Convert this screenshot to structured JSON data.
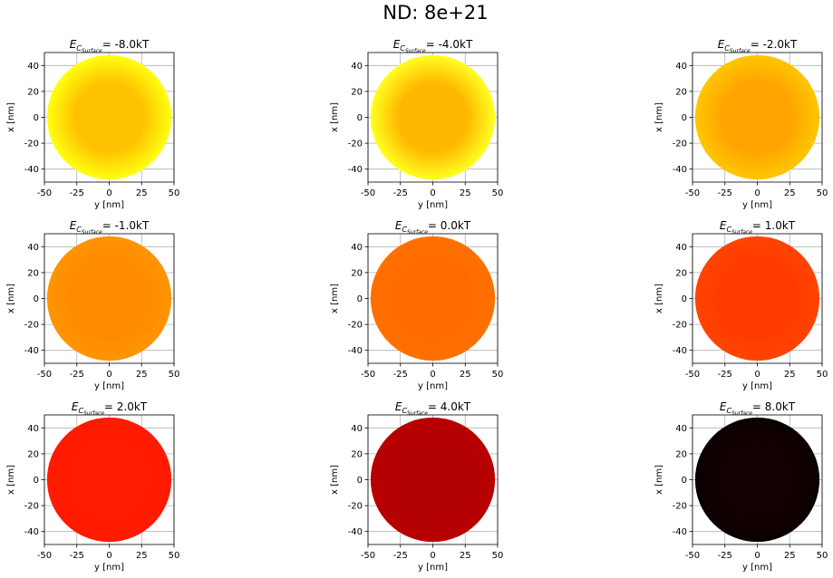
{
  "figure": {
    "suptitle": "ND: 8e+21"
  },
  "chart_data": [
    {
      "type": "heatmap",
      "title_prefix": "E",
      "title_sub": "C",
      "title_subsub": "Surface",
      "title_value": "= -8.0kT",
      "center_color": "#ffc200",
      "edge_color": "#ffff10",
      "xlabel": "y [nm]",
      "ylabel": "x [nm]",
      "xlim": [
        -50,
        50
      ],
      "ylim": [
        -50,
        50
      ],
      "xticks": [
        "-50",
        "-25",
        "0",
        "25",
        "50"
      ],
      "yticks": [
        "-40",
        "-20",
        "0",
        "20",
        "40"
      ],
      "ytick_values": [
        -40,
        -20,
        0,
        20,
        40
      ],
      "xtick_values": [
        -50,
        -25,
        0,
        25,
        50
      ],
      "grid": true,
      "shape": "disk",
      "radius": 48
    },
    {
      "type": "heatmap",
      "title_prefix": "E",
      "title_sub": "C",
      "title_subsub": "Surface",
      "title_value": "= -4.0kT",
      "center_color": "#ffb800",
      "edge_color": "#ffff20",
      "xlabel": "y [nm]",
      "ylabel": "x [nm]",
      "xlim": [
        -50,
        50
      ],
      "ylim": [
        -50,
        50
      ],
      "xticks": [
        "-50",
        "-25",
        "0",
        "25",
        "50"
      ],
      "yticks": [
        "-40",
        "-20",
        "0",
        "20",
        "40"
      ],
      "ytick_values": [
        -40,
        -20,
        0,
        20,
        40
      ],
      "xtick_values": [
        -50,
        -25,
        0,
        25,
        50
      ],
      "grid": true,
      "shape": "disk",
      "radius": 48
    },
    {
      "type": "heatmap",
      "title_prefix": "E",
      "title_sub": "C",
      "title_subsub": "Surface",
      "title_value": "= -2.0kT",
      "center_color": "#ffa400",
      "edge_color": "#ffc600",
      "xlabel": "y [nm]",
      "ylabel": "x [nm]",
      "xlim": [
        -50,
        50
      ],
      "ylim": [
        -50,
        50
      ],
      "xticks": [
        "-50",
        "-25",
        "0",
        "25",
        "50"
      ],
      "yticks": [
        "-40",
        "-20",
        "0",
        "20",
        "40"
      ],
      "ytick_values": [
        -40,
        -20,
        0,
        20,
        40
      ],
      "xtick_values": [
        -50,
        -25,
        0,
        25,
        50
      ],
      "grid": true,
      "shape": "disk",
      "radius": 48
    },
    {
      "type": "heatmap",
      "title_prefix": "E",
      "title_sub": "C",
      "title_subsub": "Surface",
      "title_value": "= -1.0kT",
      "center_color": "#ff8a00",
      "edge_color": "#ff9400",
      "xlabel": "y [nm]",
      "ylabel": "x [nm]",
      "xlim": [
        -50,
        50
      ],
      "ylim": [
        -50,
        50
      ],
      "xticks": [
        "-50",
        "-25",
        "0",
        "25",
        "50"
      ],
      "yticks": [
        "-40",
        "-20",
        "0",
        "20",
        "40"
      ],
      "ytick_values": [
        -40,
        -20,
        0,
        20,
        40
      ],
      "xtick_values": [
        -50,
        -25,
        0,
        25,
        50
      ],
      "grid": true,
      "shape": "disk",
      "radius": 48
    },
    {
      "type": "heatmap",
      "title_prefix": "E",
      "title_sub": "C",
      "title_subsub": "Surface",
      "title_value": "= 0.0kT",
      "center_color": "#ff6a00",
      "edge_color": "#ff7000",
      "xlabel": "y [nm]",
      "ylabel": "x [nm]",
      "xlim": [
        -50,
        50
      ],
      "ylim": [
        -50,
        50
      ],
      "xticks": [
        "-50",
        "-25",
        "0",
        "25",
        "50"
      ],
      "yticks": [
        "-40",
        "-20",
        "0",
        "20",
        "40"
      ],
      "ytick_values": [
        -40,
        -20,
        0,
        20,
        40
      ],
      "xtick_values": [
        -50,
        -25,
        0,
        25,
        50
      ],
      "grid": true,
      "shape": "disk",
      "radius": 48
    },
    {
      "type": "heatmap",
      "title_prefix": "E",
      "title_sub": "C",
      "title_subsub": "Surface",
      "title_value": "= 1.0kT",
      "center_color": "#ff3a00",
      "edge_color": "#ff4400",
      "xlabel": "y [nm]",
      "ylabel": "x [nm]",
      "xlim": [
        -50,
        50
      ],
      "ylim": [
        -50,
        50
      ],
      "xticks": [
        "-50",
        "-25",
        "0",
        "25",
        "50"
      ],
      "yticks": [
        "-40",
        "-20",
        "0",
        "20",
        "40"
      ],
      "ytick_values": [
        -40,
        -20,
        0,
        20,
        40
      ],
      "xtick_values": [
        -50,
        -25,
        0,
        25,
        50
      ],
      "grid": true,
      "shape": "disk",
      "radius": 48
    },
    {
      "type": "heatmap",
      "title_prefix": "E",
      "title_sub": "C",
      "title_subsub": "Surface",
      "title_value": "= 2.0kT",
      "center_color": "#ff1c00",
      "edge_color": "#ff1a00",
      "xlabel": "y [nm]",
      "ylabel": "x [nm]",
      "xlim": [
        -50,
        50
      ],
      "ylim": [
        -50,
        50
      ],
      "xticks": [
        "-50",
        "-25",
        "0",
        "25",
        "50"
      ],
      "yticks": [
        "-40",
        "-20",
        "0",
        "20",
        "40"
      ],
      "ytick_values": [
        -40,
        -20,
        0,
        20,
        40
      ],
      "xtick_values": [
        -50,
        -25,
        0,
        25,
        50
      ],
      "grid": true,
      "shape": "disk",
      "radius": 48
    },
    {
      "type": "heatmap",
      "title_prefix": "E",
      "title_sub": "C",
      "title_subsub": "Surface",
      "title_value": "= 4.0kT",
      "center_color": "#b00000",
      "edge_color": "#b80000",
      "xlabel": "y [nm]",
      "ylabel": "x [nm]",
      "xlim": [
        -50,
        50
      ],
      "ylim": [
        -50,
        50
      ],
      "xticks": [
        "-50",
        "-25",
        "0",
        "25",
        "50"
      ],
      "yticks": [
        "-40",
        "-20",
        "0",
        "20",
        "40"
      ],
      "ytick_values": [
        -40,
        -20,
        0,
        20,
        40
      ],
      "xtick_values": [
        -50,
        -25,
        0,
        25,
        50
      ],
      "grid": true,
      "shape": "disk",
      "radius": 48
    },
    {
      "type": "heatmap",
      "title_prefix": "E",
      "title_sub": "C",
      "title_subsub": "Surface",
      "title_value": "= 8.0kT",
      "center_color": "#140000",
      "edge_color": "#0a0000",
      "xlabel": "y [nm]",
      "ylabel": "x [nm]",
      "xlim": [
        -50,
        50
      ],
      "ylim": [
        -50,
        50
      ],
      "xticks": [
        "-50",
        "-25",
        "0",
        "25",
        "50"
      ],
      "yticks": [
        "-40",
        "-20",
        "0",
        "20",
        "40"
      ],
      "ytick_values": [
        -40,
        -20,
        0,
        20,
        40
      ],
      "xtick_values": [
        -50,
        -25,
        0,
        25,
        50
      ],
      "grid": true,
      "shape": "disk",
      "radius": 48
    }
  ]
}
